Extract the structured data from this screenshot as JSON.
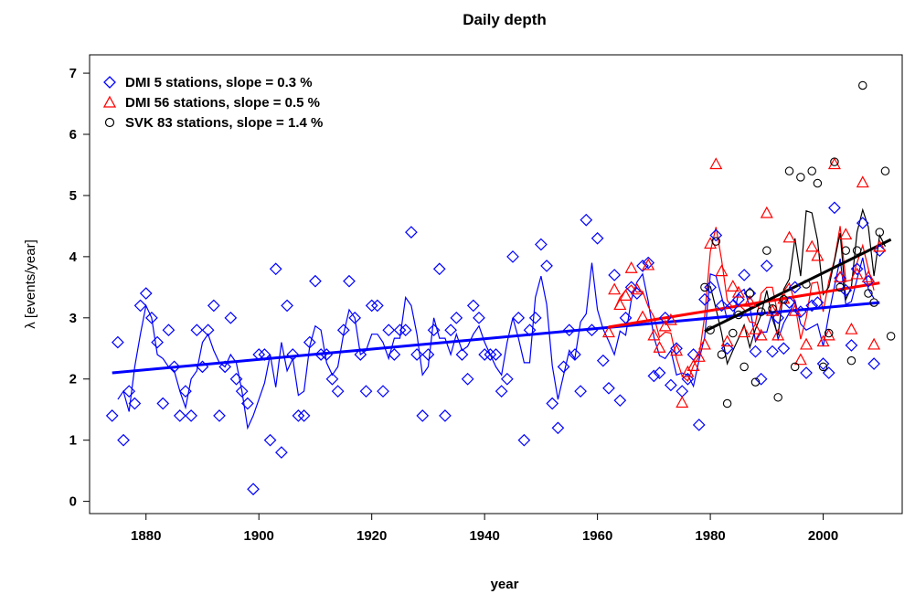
{
  "chart_data": {
    "type": "scatter",
    "title": "Daily depth",
    "xlabel": "year",
    "ylabel": "λ [events/year]",
    "xlim": [
      1870,
      2014
    ],
    "ylim": [
      -0.2,
      7.3
    ],
    "x_ticks": [
      1880,
      1900,
      1920,
      1940,
      1960,
      1980,
      2000
    ],
    "y_ticks": [
      0,
      1,
      2,
      3,
      4,
      5,
      6,
      7
    ],
    "grid": false,
    "legend_position": "top-left",
    "colors": {
      "dmi5": "#0000ff",
      "dmi56": "#ff0000",
      "svk83": "#000000"
    },
    "series": [
      {
        "name": "DMI 5 stations, slope =  0.3 %",
        "marker": "diamond",
        "color": "#0000ff",
        "points": [
          [
            1874,
            1.4
          ],
          [
            1875,
            2.6
          ],
          [
            1876,
            1.0
          ],
          [
            1877,
            1.8
          ],
          [
            1878,
            1.6
          ],
          [
            1879,
            3.2
          ],
          [
            1880,
            3.4
          ],
          [
            1881,
            3.0
          ],
          [
            1882,
            2.6
          ],
          [
            1883,
            1.6
          ],
          [
            1884,
            2.8
          ],
          [
            1885,
            2.2
          ],
          [
            1886,
            1.4
          ],
          [
            1887,
            1.8
          ],
          [
            1888,
            1.4
          ],
          [
            1889,
            2.8
          ],
          [
            1890,
            2.2
          ],
          [
            1891,
            2.8
          ],
          [
            1892,
            3.2
          ],
          [
            1893,
            1.4
          ],
          [
            1894,
            2.2
          ],
          [
            1895,
            3.0
          ],
          [
            1896,
            2.0
          ],
          [
            1897,
            1.8
          ],
          [
            1898,
            1.6
          ],
          [
            1899,
            0.2
          ],
          [
            1900,
            2.4
          ],
          [
            1901,
            2.4
          ],
          [
            1902,
            1.0
          ],
          [
            1903,
            3.8
          ],
          [
            1904,
            0.8
          ],
          [
            1905,
            3.2
          ],
          [
            1906,
            2.4
          ],
          [
            1907,
            1.4
          ],
          [
            1908,
            1.4
          ],
          [
            1909,
            2.6
          ],
          [
            1910,
            3.6
          ],
          [
            1911,
            2.4
          ],
          [
            1912,
            2.4
          ],
          [
            1913,
            2.0
          ],
          [
            1914,
            1.8
          ],
          [
            1915,
            2.8
          ],
          [
            1916,
            3.6
          ],
          [
            1917,
            3.0
          ],
          [
            1918,
            2.4
          ],
          [
            1919,
            1.8
          ],
          [
            1920,
            3.2
          ],
          [
            1921,
            3.2
          ],
          [
            1922,
            1.8
          ],
          [
            1923,
            2.8
          ],
          [
            1924,
            2.4
          ],
          [
            1925,
            2.8
          ],
          [
            1926,
            2.8
          ],
          [
            1927,
            4.4
          ],
          [
            1928,
            2.4
          ],
          [
            1929,
            1.4
          ],
          [
            1930,
            2.4
          ],
          [
            1931,
            2.8
          ],
          [
            1932,
            3.8
          ],
          [
            1933,
            1.4
          ],
          [
            1934,
            2.8
          ],
          [
            1935,
            3.0
          ],
          [
            1936,
            2.4
          ],
          [
            1937,
            2.0
          ],
          [
            1938,
            3.2
          ],
          [
            1939,
            3.0
          ],
          [
            1940,
            2.4
          ],
          [
            1941,
            2.4
          ],
          [
            1942,
            2.4
          ],
          [
            1943,
            1.8
          ],
          [
            1944,
            2.0
          ],
          [
            1945,
            4.0
          ],
          [
            1946,
            3.0
          ],
          [
            1947,
            1.0
          ],
          [
            1948,
            2.8
          ],
          [
            1949,
            3.0
          ],
          [
            1950,
            4.2
          ],
          [
            1951,
            3.85
          ],
          [
            1952,
            1.6
          ],
          [
            1953,
            1.2
          ],
          [
            1954,
            2.2
          ],
          [
            1955,
            2.8
          ],
          [
            1956,
            2.4
          ],
          [
            1957,
            1.8
          ],
          [
            1958,
            4.6
          ],
          [
            1959,
            2.8
          ],
          [
            1960,
            4.3
          ],
          [
            1961,
            2.3
          ],
          [
            1962,
            1.85
          ],
          [
            1963,
            3.7
          ],
          [
            1964,
            1.65
          ],
          [
            1965,
            3.0
          ],
          [
            1966,
            3.5
          ],
          [
            1967,
            3.4
          ],
          [
            1968,
            3.85
          ],
          [
            1969,
            3.9
          ],
          [
            1970,
            2.05
          ],
          [
            1971,
            2.1
          ],
          [
            1972,
            3.0
          ],
          [
            1973,
            1.9
          ],
          [
            1974,
            2.5
          ],
          [
            1975,
            1.8
          ],
          [
            1976,
            2.0
          ],
          [
            1977,
            2.4
          ],
          [
            1978,
            1.25
          ],
          [
            1979,
            3.3
          ],
          [
            1980,
            3.5
          ],
          [
            1981,
            4.35
          ],
          [
            1982,
            3.2
          ],
          [
            1983,
            2.5
          ],
          [
            1984,
            3.2
          ],
          [
            1985,
            3.3
          ],
          [
            1986,
            3.7
          ],
          [
            1987,
            3.4
          ],
          [
            1988,
            2.45
          ],
          [
            1989,
            2.0
          ],
          [
            1990,
            3.85
          ],
          [
            1991,
            2.45
          ],
          [
            1992,
            3.0
          ],
          [
            1993,
            2.5
          ],
          [
            1994,
            3.25
          ],
          [
            1995,
            3.5
          ],
          [
            1996,
            3.1
          ],
          [
            1997,
            2.1
          ],
          [
            1998,
            3.2
          ],
          [
            1999,
            3.25
          ],
          [
            2000,
            2.25
          ],
          [
            2001,
            2.1
          ],
          [
            2002,
            4.8
          ],
          [
            2003,
            3.65
          ],
          [
            2004,
            3.45
          ],
          [
            2005,
            2.55
          ],
          [
            2006,
            3.8
          ],
          [
            2007,
            4.55
          ],
          [
            2008,
            3.6
          ],
          [
            2009,
            2.25
          ],
          [
            2010,
            4.1
          ]
        ]
      },
      {
        "name": "DMI 56 stations, slope =  0.5 %",
        "marker": "triangle",
        "color": "#ff0000",
        "points": [
          [
            1962,
            2.75
          ],
          [
            1963,
            3.45
          ],
          [
            1964,
            3.2
          ],
          [
            1965,
            3.35
          ],
          [
            1966,
            3.8
          ],
          [
            1967,
            3.45
          ],
          [
            1968,
            3.0
          ],
          [
            1969,
            3.85
          ],
          [
            1970,
            2.7
          ],
          [
            1971,
            2.5
          ],
          [
            1972,
            2.85
          ],
          [
            1973,
            2.95
          ],
          [
            1974,
            2.45
          ],
          [
            1975,
            1.6
          ],
          [
            1976,
            2.1
          ],
          [
            1977,
            2.2
          ],
          [
            1978,
            2.35
          ],
          [
            1979,
            2.55
          ],
          [
            1980,
            4.2
          ],
          [
            1981,
            5.5
          ],
          [
            1982,
            3.75
          ],
          [
            1983,
            2.6
          ],
          [
            1984,
            3.5
          ],
          [
            1985,
            3.4
          ],
          [
            1986,
            2.75
          ],
          [
            1987,
            3.25
          ],
          [
            1988,
            2.8
          ],
          [
            1989,
            2.7
          ],
          [
            1990,
            4.7
          ],
          [
            1991,
            3.1
          ],
          [
            1992,
            2.7
          ],
          [
            1993,
            3.3
          ],
          [
            1994,
            4.3
          ],
          [
            1995,
            3.1
          ],
          [
            1996,
            2.3
          ],
          [
            1997,
            2.55
          ],
          [
            1998,
            4.15
          ],
          [
            1999,
            4.0
          ],
          [
            2000,
            2.6
          ],
          [
            2001,
            2.7
          ],
          [
            2002,
            5.5
          ],
          [
            2003,
            3.65
          ],
          [
            2004,
            4.35
          ],
          [
            2005,
            2.8
          ],
          [
            2006,
            3.7
          ],
          [
            2007,
            5.2
          ],
          [
            2008,
            3.65
          ],
          [
            2009,
            2.55
          ],
          [
            2010,
            4.15
          ]
        ]
      },
      {
        "name": "SVK 83 stations, slope =  1.4 %",
        "marker": "circle",
        "color": "#000000",
        "points": [
          [
            1979,
            3.5
          ],
          [
            1980,
            2.8
          ],
          [
            1981,
            4.25
          ],
          [
            1982,
            2.4
          ],
          [
            1983,
            1.6
          ],
          [
            1984,
            2.75
          ],
          [
            1985,
            3.05
          ],
          [
            1986,
            2.2
          ],
          [
            1987,
            3.4
          ],
          [
            1988,
            1.95
          ],
          [
            1989,
            3.1
          ],
          [
            1990,
            4.1
          ],
          [
            1991,
            3.15
          ],
          [
            1992,
            1.7
          ],
          [
            1993,
            3.3
          ],
          [
            1994,
            5.4
          ],
          [
            1995,
            2.2
          ],
          [
            1996,
            5.3
          ],
          [
            1997,
            3.55
          ],
          [
            1998,
            5.4
          ],
          [
            1999,
            5.2
          ],
          [
            2000,
            2.2
          ],
          [
            2001,
            2.75
          ],
          [
            2002,
            5.55
          ],
          [
            2003,
            3.5
          ],
          [
            2004,
            4.1
          ],
          [
            2005,
            2.3
          ],
          [
            2006,
            4.1
          ],
          [
            2007,
            6.8
          ],
          [
            2008,
            3.4
          ],
          [
            2009,
            3.25
          ],
          [
            2010,
            4.4
          ],
          [
            2011,
            5.4
          ],
          [
            2012,
            2.7
          ]
        ]
      }
    ],
    "trend_lines": [
      {
        "series": "DMI 5 stations, slope =  0.3 %",
        "color": "#0000ff",
        "x": [
          1874,
          2010
        ],
        "y": [
          2.1,
          3.25
        ]
      },
      {
        "series": "DMI 56 stations, slope =  0.5 %",
        "color": "#ff0000",
        "x": [
          1962,
          2010
        ],
        "y": [
          2.85,
          3.57
        ]
      },
      {
        "series": "SVK 83 stations, slope =  1.4 %",
        "color": "#000000",
        "x": [
          1979,
          2012
        ],
        "y": [
          2.78,
          4.28
        ]
      }
    ]
  }
}
